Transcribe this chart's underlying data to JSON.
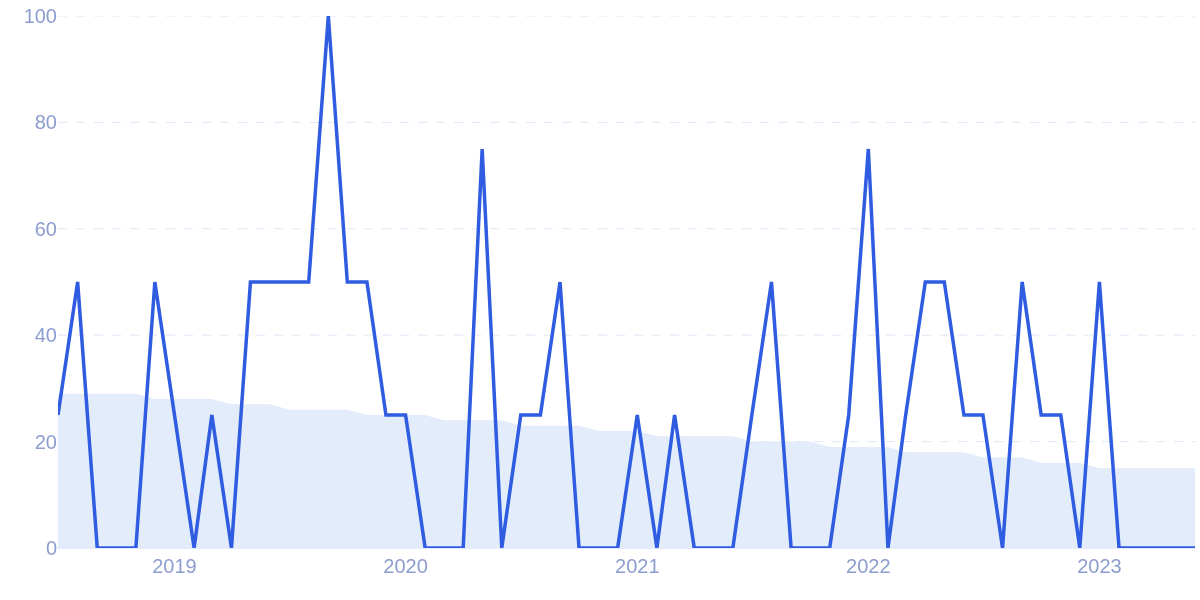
{
  "chart_data": {
    "type": "line",
    "x": [
      "2018-07",
      "2018-08",
      "2018-09",
      "2018-10",
      "2018-11",
      "2018-12",
      "2019-01",
      "2019-02",
      "2019-03",
      "2019-04",
      "2019-05",
      "2019-06",
      "2019-07",
      "2019-08",
      "2019-09",
      "2019-10",
      "2019-11",
      "2019-12",
      "2020-01",
      "2020-02",
      "2020-03",
      "2020-04",
      "2020-05",
      "2020-06",
      "2020-07",
      "2020-08",
      "2020-09",
      "2020-10",
      "2020-11",
      "2020-12",
      "2021-01",
      "2021-02",
      "2021-03",
      "2021-04",
      "2021-05",
      "2021-06",
      "2021-07",
      "2021-08",
      "2021-09",
      "2021-10",
      "2021-11",
      "2021-12",
      "2022-01",
      "2022-02",
      "2022-03",
      "2022-04",
      "2022-05",
      "2022-06",
      "2022-07",
      "2022-08",
      "2022-09",
      "2022-10",
      "2022-11",
      "2022-12",
      "2023-01",
      "2023-02",
      "2023-03",
      "2023-04",
      "2023-05",
      "2023-06"
    ],
    "series": [
      {
        "type": "area",
        "color": "#e2ecfb",
        "values": [
          29,
          29,
          29,
          29,
          29,
          28,
          28,
          28,
          28,
          27,
          27,
          27,
          26,
          26,
          26,
          26,
          25,
          25,
          25,
          25,
          24,
          24,
          24,
          24,
          23,
          23,
          23,
          23,
          22,
          22,
          22,
          21,
          21,
          21,
          21,
          21,
          20,
          20,
          20,
          20,
          19,
          19,
          19,
          19,
          18,
          18,
          18,
          18,
          17,
          17,
          17,
          16,
          16,
          16,
          15,
          15,
          15,
          15,
          15,
          15
        ]
      },
      {
        "type": "line",
        "color": "#2f5ce0",
        "values": [
          25,
          50,
          0,
          0,
          0,
          50,
          25,
          0,
          25,
          0,
          50,
          50,
          50,
          50,
          100,
          50,
          50,
          25,
          25,
          0,
          0,
          0,
          75,
          0,
          25,
          25,
          50,
          0,
          0,
          0,
          25,
          0,
          25,
          0,
          0,
          0,
          25,
          50,
          0,
          0,
          0,
          25,
          75,
          0,
          25,
          50,
          50,
          25,
          25,
          0,
          50,
          25,
          25,
          0,
          50,
          0,
          0,
          0,
          0,
          0
        ]
      }
    ],
    "xlim": [
      "2018-07",
      "2023-06"
    ],
    "xticks": [
      "2019",
      "2020",
      "2021",
      "2022",
      "2023"
    ],
    "ylim": [
      0,
      100
    ],
    "yticks": [
      0,
      20,
      40,
      60,
      80,
      100
    ],
    "grid": "y",
    "marker": "none",
    "line_style": "solid",
    "legend": false
  }
}
